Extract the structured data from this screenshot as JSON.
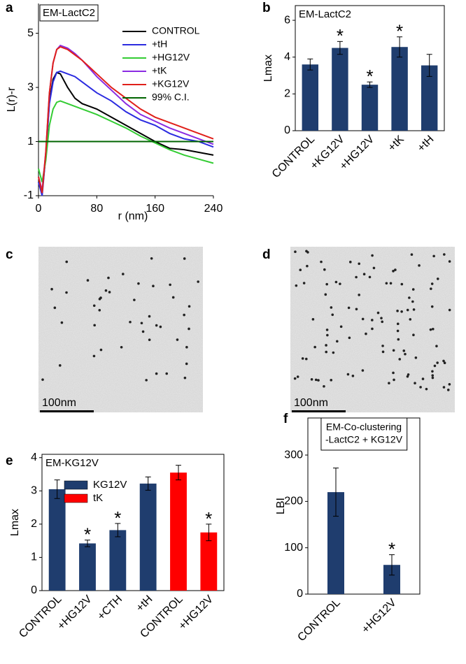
{
  "panel_letters": [
    "a",
    "b",
    "c",
    "d",
    "e",
    "f"
  ],
  "images": [
    {
      "scale_bar": "100nm"
    },
    {
      "scale_bar": "100nm"
    }
  ],
  "chart_data": [
    {
      "type": "line",
      "title": "EM-LactC2",
      "xlabel": "r (nm)",
      "ylabel": "L(r)-r",
      "x": [
        0,
        5,
        10,
        15,
        20,
        25,
        30,
        40,
        50,
        60,
        80,
        100,
        120,
        140,
        160,
        180,
        200,
        220,
        240
      ],
      "series": [
        {
          "name": "CONTROL",
          "color": "#000000",
          "values": [
            -0.5,
            -0.9,
            0.5,
            2.5,
            3.3,
            3.55,
            3.5,
            3.0,
            2.6,
            2.4,
            2.2,
            1.9,
            1.6,
            1.3,
            1.0,
            0.75,
            0.7,
            0.6,
            0.5
          ]
        },
        {
          "name": "+tH",
          "color": "#2b2be0",
          "values": [
            -0.5,
            -1.0,
            0.5,
            2.4,
            3.2,
            3.55,
            3.6,
            3.5,
            3.4,
            3.2,
            2.8,
            2.5,
            2.1,
            1.8,
            1.6,
            1.3,
            1.1,
            1.0,
            0.8
          ]
        },
        {
          "name": "+HG12V",
          "color": "#33cc33",
          "values": [
            0.0,
            -0.5,
            0.3,
            1.6,
            2.2,
            2.45,
            2.5,
            2.4,
            2.3,
            2.2,
            2.0,
            1.75,
            1.5,
            1.2,
            0.95,
            0.7,
            0.5,
            0.35,
            0.2
          ]
        },
        {
          "name": "+tK",
          "color": "#8a2be2",
          "values": [
            -0.3,
            -0.8,
            0.6,
            2.8,
            3.9,
            4.4,
            4.55,
            4.45,
            4.25,
            4.0,
            3.4,
            2.9,
            2.4,
            2.0,
            1.75,
            1.5,
            1.3,
            1.1,
            0.9
          ]
        },
        {
          "name": "+KG12V",
          "color": "#e0201a",
          "values": [
            -0.3,
            -0.9,
            0.6,
            2.8,
            3.9,
            4.4,
            4.5,
            4.4,
            4.2,
            4.0,
            3.5,
            3.0,
            2.6,
            2.2,
            1.9,
            1.7,
            1.5,
            1.3,
            1.1
          ]
        },
        {
          "name": "99% C.I.",
          "color": "#006400",
          "values": [
            1,
            1,
            1,
            1,
            1,
            1,
            1,
            1,
            1,
            1,
            1,
            1,
            1,
            1,
            1,
            1,
            1,
            1,
            1
          ]
        }
      ],
      "xlim": [
        0,
        240
      ],
      "xticks": [
        0,
        80,
        160,
        240
      ],
      "ylim": [
        -1,
        6.1
      ],
      "yticks": [
        -1,
        1,
        3,
        5
      ],
      "legend": "upper right"
    },
    {
      "type": "bar",
      "title": "EM-LactC2",
      "ylabel": "Lmax",
      "categories": [
        "CONTROL",
        "+KG12V",
        "+HG12V",
        "+tK",
        "+tH"
      ],
      "series": [
        {
          "color": "#1f3d6e",
          "values": [
            3.6,
            4.5,
            2.5,
            4.55,
            3.55
          ],
          "errors": [
            0.3,
            0.35,
            0.15,
            0.55,
            0.6
          ]
        }
      ],
      "significance": [
        null,
        "*",
        "*",
        "*",
        null
      ],
      "ylim": [
        0,
        6.8
      ],
      "yticks": [
        0,
        2,
        4,
        6
      ]
    },
    {
      "type": "bar",
      "title": "EM-KG12V",
      "ylabel": "Lmax",
      "categories": [
        "CONTROL",
        "+HG12V",
        "+CTH",
        "+tH",
        "CONTROL",
        "+HG12V"
      ],
      "series": [
        {
          "name": "KG12V",
          "color": "#1f3d6e",
          "values": [
            3.05,
            1.42,
            1.82,
            3.22,
            null,
            null
          ],
          "errors": [
            0.28,
            0.1,
            0.2,
            0.2,
            null,
            null
          ]
        },
        {
          "name": "tK",
          "color": "#ff0000",
          "values": [
            null,
            null,
            null,
            null,
            3.55,
            1.75
          ],
          "errors": [
            null,
            null,
            null,
            null,
            0.22,
            0.25
          ]
        }
      ],
      "significance": [
        null,
        "*",
        "*",
        null,
        null,
        "*"
      ],
      "ylim": [
        0,
        4.1
      ],
      "yticks": [
        0,
        1,
        2,
        3,
        4
      ],
      "legend": "upper left"
    },
    {
      "type": "bar",
      "title": [
        "EM-Co-clustering",
        "-LactC2 + KG12V"
      ],
      "ylabel": "LBI",
      "categories": [
        "CONTROL",
        "+HG12V"
      ],
      "series": [
        {
          "color": "#1f3d6e",
          "values": [
            220,
            63
          ],
          "errors": [
            52,
            22
          ]
        }
      ],
      "significance": [
        null,
        "*"
      ],
      "ylim": [
        0,
        380
      ],
      "yticks": [
        0,
        100,
        200,
        300
      ]
    }
  ]
}
